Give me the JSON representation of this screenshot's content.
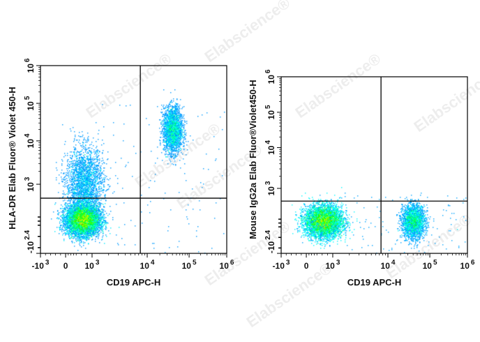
{
  "watermark": "Elabscience®",
  "colormap": [
    "#0000ff",
    "#00ffff",
    "#00ff00",
    "#ffff00",
    "#ff0000"
  ],
  "chart_data": [
    {
      "type": "scatter",
      "subtype": "flow-cytometry-density-dot-plot",
      "xlabel": "CD19 APC-H",
      "ylabel": "HLA-DR Elab Fluor® Violet 450-H",
      "x_scale": "biexponential",
      "y_scale": "biexponential",
      "xlim": [
        -1000,
        1000000
      ],
      "ylim": [
        -251,
        1000000
      ],
      "x_ticks": [
        {
          "base": "-10",
          "exp": "3",
          "value": -1000
        },
        {
          "base": "0",
          "exp": "",
          "value": 0
        },
        {
          "base": "10",
          "exp": "3",
          "value": 1000
        },
        {
          "base": "10",
          "exp": "4",
          "value": 10000
        },
        {
          "base": "10",
          "exp": "5",
          "value": 100000
        },
        {
          "base": "10",
          "exp": "6",
          "value": 1000000
        }
      ],
      "y_ticks": [
        {
          "base": "-10",
          "exp": "2.4",
          "value": -251
        },
        {
          "base": "10",
          "exp": "3",
          "value": 1000
        },
        {
          "base": "10",
          "exp": "4",
          "value": 10000
        },
        {
          "base": "10",
          "exp": "5",
          "value": 100000
        },
        {
          "base": "10",
          "exp": "6",
          "value": 1000000
        }
      ],
      "quadrant_gate": {
        "x": 7500,
        "y": 660
      },
      "populations": [
        {
          "x": 640,
          "y": 130,
          "density": "high"
        },
        {
          "x": 700,
          "y": 1000,
          "density": "low"
        },
        {
          "x": 40000,
          "y": 20000,
          "density": "medium"
        }
      ]
    },
    {
      "type": "scatter",
      "subtype": "flow-cytometry-density-dot-plot",
      "xlabel": "CD19 APC-H",
      "ylabel": "Mouse IgG2a Elab Fluor®Violet450-H",
      "x_scale": "biexponential",
      "y_scale": "biexponential",
      "xlim": [
        -1000,
        1000000
      ],
      "ylim": [
        -251,
        1000000
      ],
      "x_ticks": [
        {
          "base": "-10",
          "exp": "3",
          "value": -1000
        },
        {
          "base": "0",
          "exp": "",
          "value": 0
        },
        {
          "base": "10",
          "exp": "3",
          "value": 1000
        },
        {
          "base": "10",
          "exp": "4",
          "value": 10000
        },
        {
          "base": "10",
          "exp": "5",
          "value": 100000
        },
        {
          "base": "10",
          "exp": "6",
          "value": 1000000
        }
      ],
      "y_ticks": [
        {
          "base": "-10",
          "exp": "2.4",
          "value": -251
        },
        {
          "base": "10",
          "exp": "3",
          "value": 1000
        },
        {
          "base": "10",
          "exp": "4",
          "value": 10000
        },
        {
          "base": "10",
          "exp": "5",
          "value": 100000
        },
        {
          "base": "10",
          "exp": "6",
          "value": 1000000
        }
      ],
      "quadrant_gate": {
        "x": 7500,
        "y": 670
      },
      "populations": [
        {
          "x": 640,
          "y": 150,
          "density": "high"
        },
        {
          "x": 40000,
          "y": 150,
          "density": "medium"
        }
      ]
    }
  ]
}
